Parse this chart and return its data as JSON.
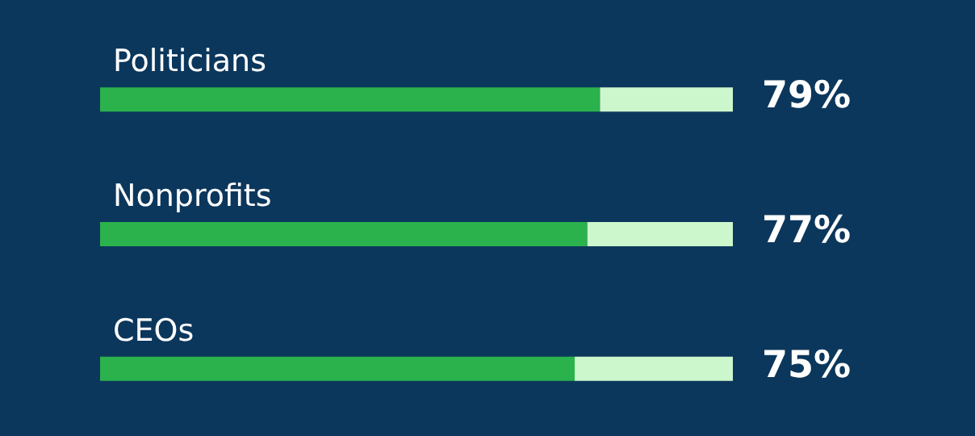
{
  "chart_data": {
    "type": "bar",
    "orientation": "horizontal",
    "stacked": true,
    "categories": [
      "Politicians",
      "Nonprofits",
      "CEOs"
    ],
    "xlim": [
      0,
      100
    ],
    "tick_labels": "y",
    "series": [
      {
        "color": "#2bb24c",
        "values": [
          79,
          77,
          75
        ],
        "value_labels": [
          "79%",
          "77%",
          "75%"
        ]
      },
      {
        "color": "#ccf7cc",
        "values": [
          21,
          23,
          25
        ]
      }
    ]
  }
}
